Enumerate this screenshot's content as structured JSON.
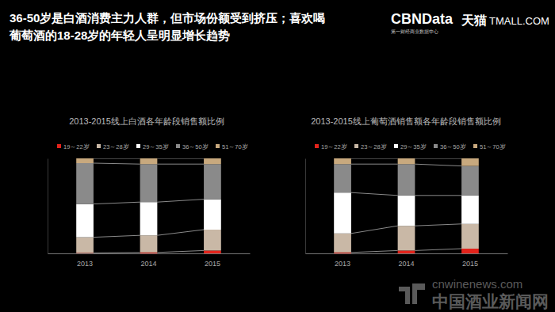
{
  "header": {
    "title_lines": [
      "36-50岁是白酒消费主力人群，但市场份额受到挤压；喜欢喝",
      "葡萄酒的18-28岁的年轻人呈明显增长趋势"
    ],
    "logo": "CBNData",
    "logo_sub": "第一财经商业数据中心",
    "brand": "天猫",
    "brand_en": "TMALL.COM"
  },
  "watermark": {
    "url": "cnwinenews.com",
    "name": "中国酒业新闻网"
  },
  "chart_data": [
    {
      "type": "bar",
      "title": "2013-2015线上白酒各年龄段销售额比例",
      "stacked": true,
      "tick_labels": "x",
      "categories": [
        "2013",
        "2014",
        "2015"
      ],
      "ylim": [
        0,
        100
      ],
      "series": [
        {
          "name": "19～22岁",
          "color": "#e3231b",
          "values": [
            0.5,
            1,
            3
          ]
        },
        {
          "name": "23～28岁",
          "color": "#c9b8a6",
          "values": [
            16.5,
            18,
            22
          ]
        },
        {
          "name": "29～35岁",
          "color": "#ffffff",
          "values": [
            35,
            35,
            32
          ]
        },
        {
          "name": "36～50岁",
          "color": "#8a8a8a",
          "values": [
            43,
            40,
            37
          ]
        },
        {
          "name": "51～70岁",
          "color": "#c8a97e",
          "values": [
            5,
            6,
            6
          ]
        }
      ]
    },
    {
      "type": "bar",
      "title": "2013-2015线上葡萄酒销售额各年龄段销售额比例",
      "stacked": true,
      "tick_labels": "x",
      "categories": [
        "2013",
        "2014",
        "2015"
      ],
      "ylim": [
        0,
        100
      ],
      "series": [
        {
          "name": "19～22岁",
          "color": "#e3231b",
          "values": [
            1,
            3,
            5
          ]
        },
        {
          "name": "23～28岁",
          "color": "#c9b8a6",
          "values": [
            20,
            26,
            26
          ]
        },
        {
          "name": "29～35岁",
          "color": "#ffffff",
          "values": [
            43,
            32,
            30
          ]
        },
        {
          "name": "36～50岁",
          "color": "#8a8a8a",
          "values": [
            30,
            33,
            31
          ]
        },
        {
          "name": "51～70岁",
          "color": "#c8a97e",
          "values": [
            6,
            6,
            8
          ]
        }
      ]
    }
  ]
}
